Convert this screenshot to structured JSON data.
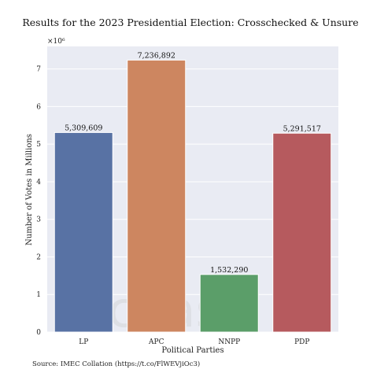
{
  "chart_data": {
    "type": "bar",
    "title": "Results for the 2023 Presidential Election: Crosschecked & Unsure",
    "xlabel": "Political Parties",
    "ylabel": "Number of Votes in Millions",
    "offset_text": "×10⁶",
    "categories": [
      "LP",
      "APC",
      "NNPP",
      "PDP"
    ],
    "values": [
      5309609,
      7236892,
      1532290,
      5291517
    ],
    "value_labels": [
      "5,309,609",
      "7,236,892",
      "1,532,290",
      "5,291,517"
    ],
    "ylim": [
      0,
      7600000
    ],
    "yticks": [
      0,
      1,
      2,
      3,
      4,
      5,
      6,
      7
    ],
    "colors": [
      "#5872a4",
      "#cd8660",
      "#5b9e69",
      "#b65a5e"
    ],
    "grid": true,
    "background": "#e9ebf3"
  },
  "source": "Source: IMEC Collation (https://t.co/FlWEVjiOc3)",
  "watermark": "Ychas"
}
